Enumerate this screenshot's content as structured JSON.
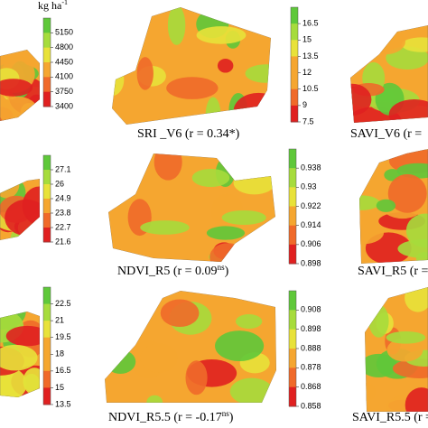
{
  "unit": {
    "text": "kg ha",
    "sup": "-1"
  },
  "colorbars": [
    [
      "5150",
      "4800",
      "4450",
      "4100",
      "3750",
      "3400"
    ],
    [
      "16.5",
      "15",
      "13.5",
      "12",
      "10.5",
      "9",
      "7.5"
    ],
    [
      "27.1",
      "26",
      "24.9",
      "23.8",
      "22.7",
      "21.6"
    ],
    [
      "0.938",
      "0.93",
      "0.922",
      "0.914",
      "0.906",
      "0.898"
    ],
    [
      "22.5",
      "21",
      "19.5",
      "18",
      "16.5",
      "15",
      "13.5"
    ],
    [
      "0.908",
      "0.898",
      "0.888",
      "0.878",
      "0.868",
      "0.858"
    ]
  ],
  "captions": [
    {
      "text": "SRI _V6 (r = 0.34*)"
    },
    {
      "text": "SAVI_V6 (r ="
    },
    {
      "text": "NDVI_R5 (r = 0.09",
      "sup": "ns",
      "end": ")"
    },
    {
      "text": "SAVI_R5 (r ="
    },
    {
      "text": "NDVI_R5.5 (r = -0.17",
      "sup": "ns",
      "end": ")"
    },
    {
      "text": "SAVI_R5.5 (r ="
    }
  ]
}
